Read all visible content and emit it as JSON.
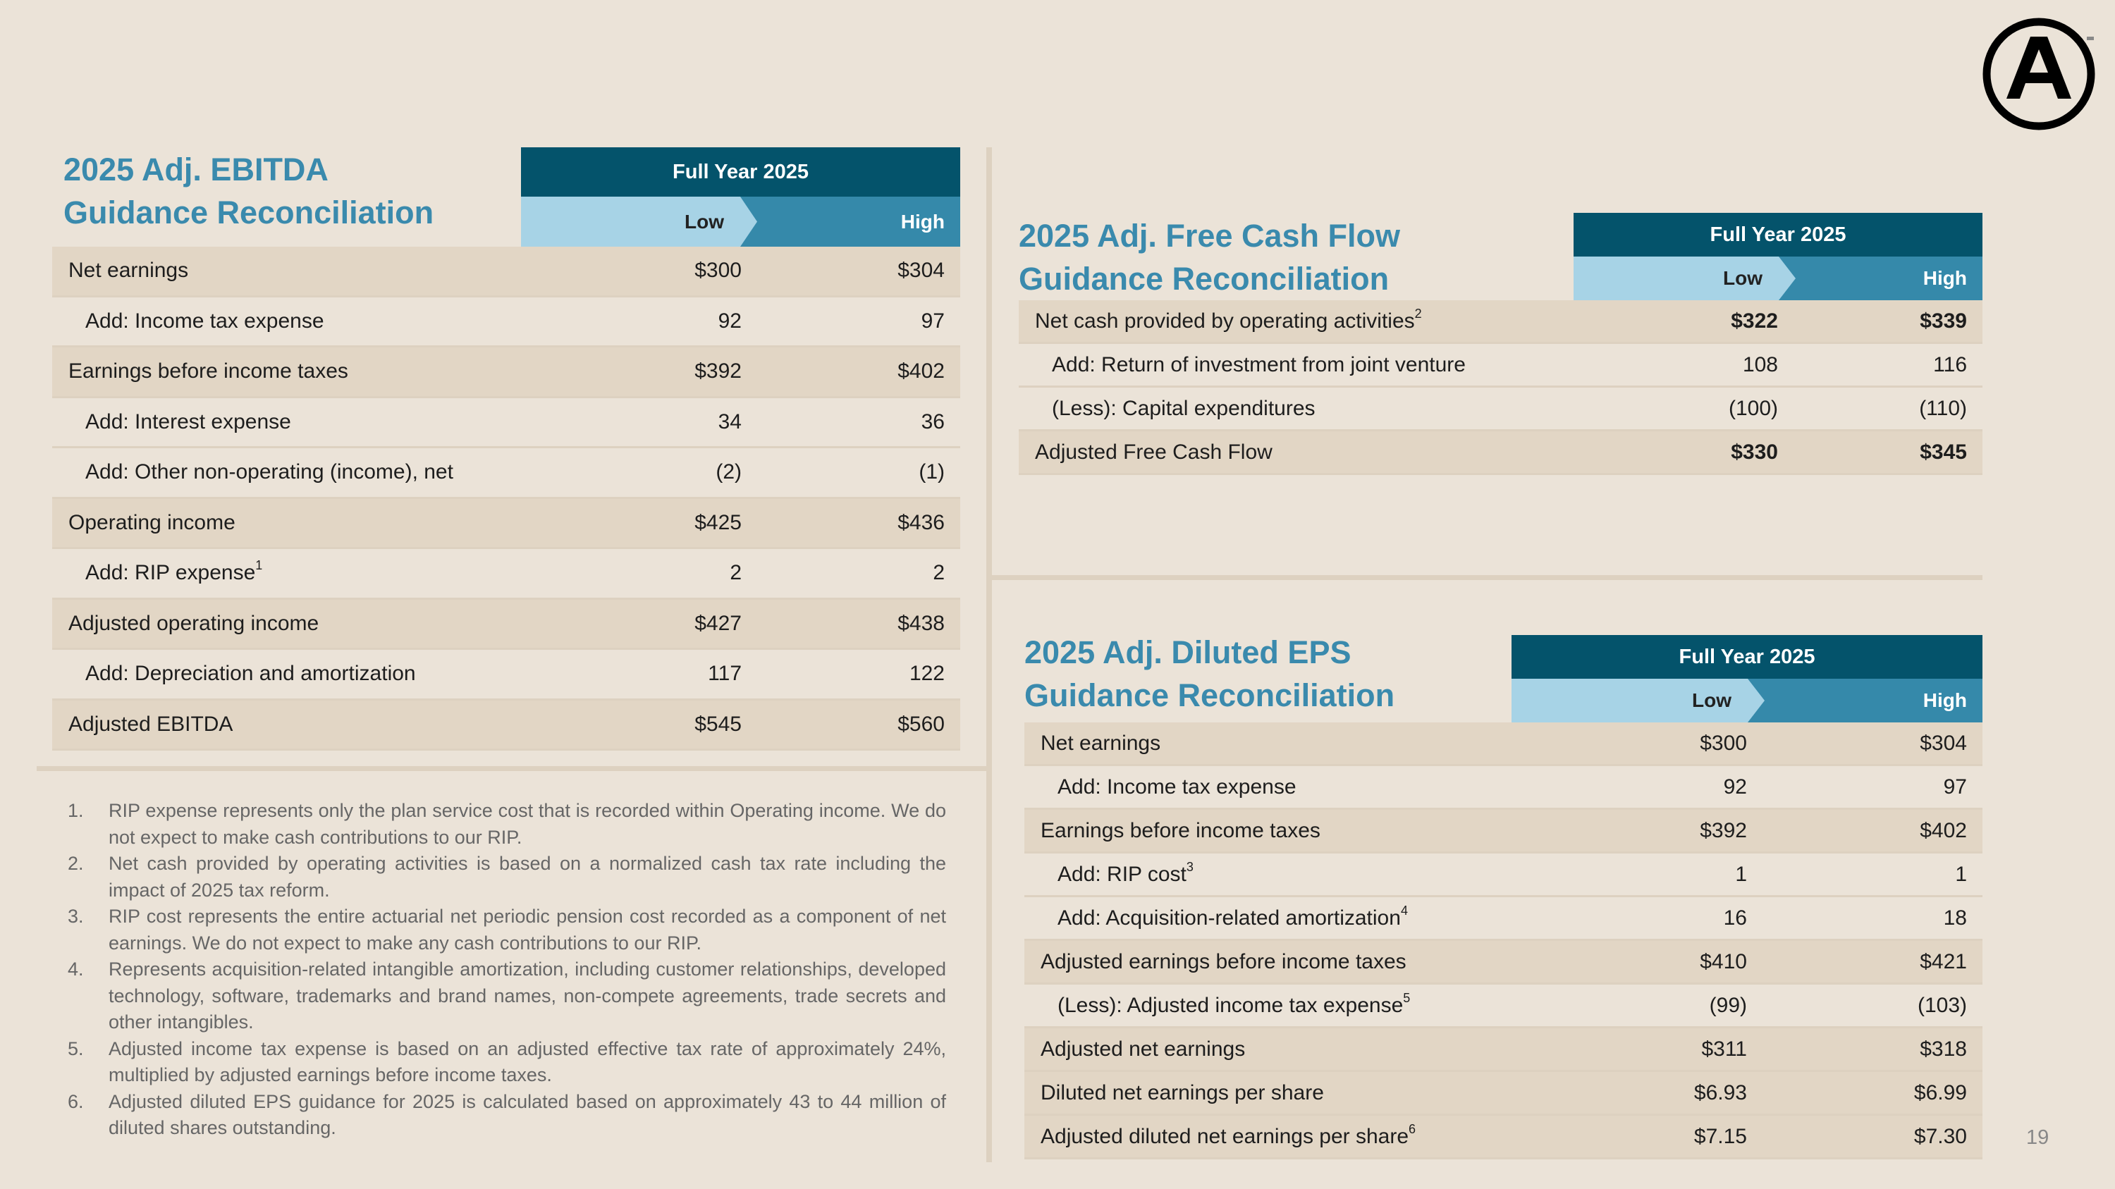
{
  "logo": {
    "text": "A",
    "tm": "™"
  },
  "page_number": "19",
  "colors": {
    "title": "#3a8aad",
    "header_dark": "#04536b",
    "low_band": "#a7d3e6",
    "high_band": "#3589aa",
    "row_shade": "#e2d6c5",
    "background": "#ebe3d8"
  },
  "ebitda": {
    "title_line1": "2025 Adj. EBITDA",
    "title_line2": "Guidance Reconciliation",
    "header": "Full Year 2025",
    "low": "Low",
    "high": "High",
    "rows": [
      {
        "label": "Net earnings",
        "low": "$300",
        "high": "$304",
        "indent": false
      },
      {
        "label": "Add: Income tax expense",
        "low": "92",
        "high": "97",
        "indent": true
      },
      {
        "label": "Earnings before income taxes",
        "low": "$392",
        "high": "$402",
        "indent": false
      },
      {
        "label": "Add: Interest expense",
        "low": "34",
        "high": "36",
        "indent": true
      },
      {
        "label": "Add: Other non-operating (income), net",
        "low": "(2)",
        "high": "(1)",
        "indent": true
      },
      {
        "label": "Operating income",
        "low": "$425",
        "high": "$436",
        "indent": false
      },
      {
        "label": "Add: RIP expense",
        "sup": "1",
        "low": "2",
        "high": "2",
        "indent": true
      },
      {
        "label": "Adjusted operating income",
        "low": "$427",
        "high": "$438",
        "indent": false
      },
      {
        "label": "Add: Depreciation and amortization",
        "low": "117",
        "high": "122",
        "indent": true
      },
      {
        "label": "Adjusted EBITDA",
        "low": "$545",
        "high": "$560",
        "indent": false
      }
    ]
  },
  "fcf": {
    "title_line1": "2025 Adj. Free Cash Flow",
    "title_line2": "Guidance Reconciliation",
    "header": "Full Year 2025",
    "low": "Low",
    "high": "High",
    "rows": [
      {
        "label": "Net cash provided by operating activities",
        "sup": "2",
        "low": "$322",
        "high": "$339",
        "indent": false,
        "bold": true
      },
      {
        "label": "Add: Return of investment from joint venture",
        "low": "108",
        "high": "116",
        "indent": true
      },
      {
        "label": "(Less): Capital expenditures",
        "low": "(100)",
        "high": "(110)",
        "indent": true
      },
      {
        "label": "Adjusted Free Cash Flow",
        "low": "$330",
        "high": "$345",
        "indent": false,
        "bold": true
      }
    ]
  },
  "eps": {
    "title_line1": "2025 Adj. Diluted EPS",
    "title_line2": "Guidance Reconciliation",
    "header": "Full Year 2025",
    "low": "Low",
    "high": "High",
    "rows": [
      {
        "label": "Net earnings",
        "low": "$300",
        "high": "$304",
        "indent": false
      },
      {
        "label": "Add: Income tax expense",
        "low": "92",
        "high": "97",
        "indent": true
      },
      {
        "label": "Earnings before income taxes",
        "low": "$392",
        "high": "$402",
        "indent": false
      },
      {
        "label": "Add: RIP cost",
        "sup": "3",
        "low": "1",
        "high": "1",
        "indent": true
      },
      {
        "label": "Add: Acquisition-related amortization",
        "sup": "4",
        "low": "16",
        "high": "18",
        "indent": true
      },
      {
        "label": "Adjusted earnings before income taxes",
        "low": "$410",
        "high": "$421",
        "indent": false
      },
      {
        "label": "(Less): Adjusted income tax expense",
        "sup": "5",
        "low": "(99)",
        "high": "(103)",
        "indent": true
      },
      {
        "label": "Adjusted net earnings",
        "low": "$311",
        "high": "$318",
        "indent": false
      },
      {
        "label": "Diluted net earnings per share",
        "low": "$6.93",
        "high": "$6.99",
        "indent": false
      },
      {
        "label": "Adjusted diluted net earnings per share",
        "sup": "6",
        "low": "$7.15",
        "high": "$7.30",
        "indent": false
      }
    ]
  },
  "footnotes": [
    {
      "num": "1.",
      "text": "RIP expense represents only the plan service cost that is recorded within Operating income. We do not expect to make cash contributions to our RIP."
    },
    {
      "num": "2.",
      "text": "Net cash provided by operating activities is based on a normalized cash tax rate including the impact of 2025 tax reform."
    },
    {
      "num": "3.",
      "text": "RIP cost represents the entire actuarial net periodic pension cost recorded as a component of net earnings. We do not expect to make any cash contributions to our RIP."
    },
    {
      "num": "4.",
      "text": "Represents acquisition-related intangible amortization, including customer relationships, developed technology, software, trademarks and brand names, non-compete agreements, trade secrets and other intangibles."
    },
    {
      "num": "5.",
      "text": "Adjusted income tax expense is based on an adjusted effective tax rate of approximately 24%, multiplied by adjusted earnings before income taxes."
    },
    {
      "num": "6.",
      "text": "Adjusted diluted EPS guidance for 2025 is calculated based on approximately 43 to 44 million of diluted shares outstanding."
    }
  ]
}
